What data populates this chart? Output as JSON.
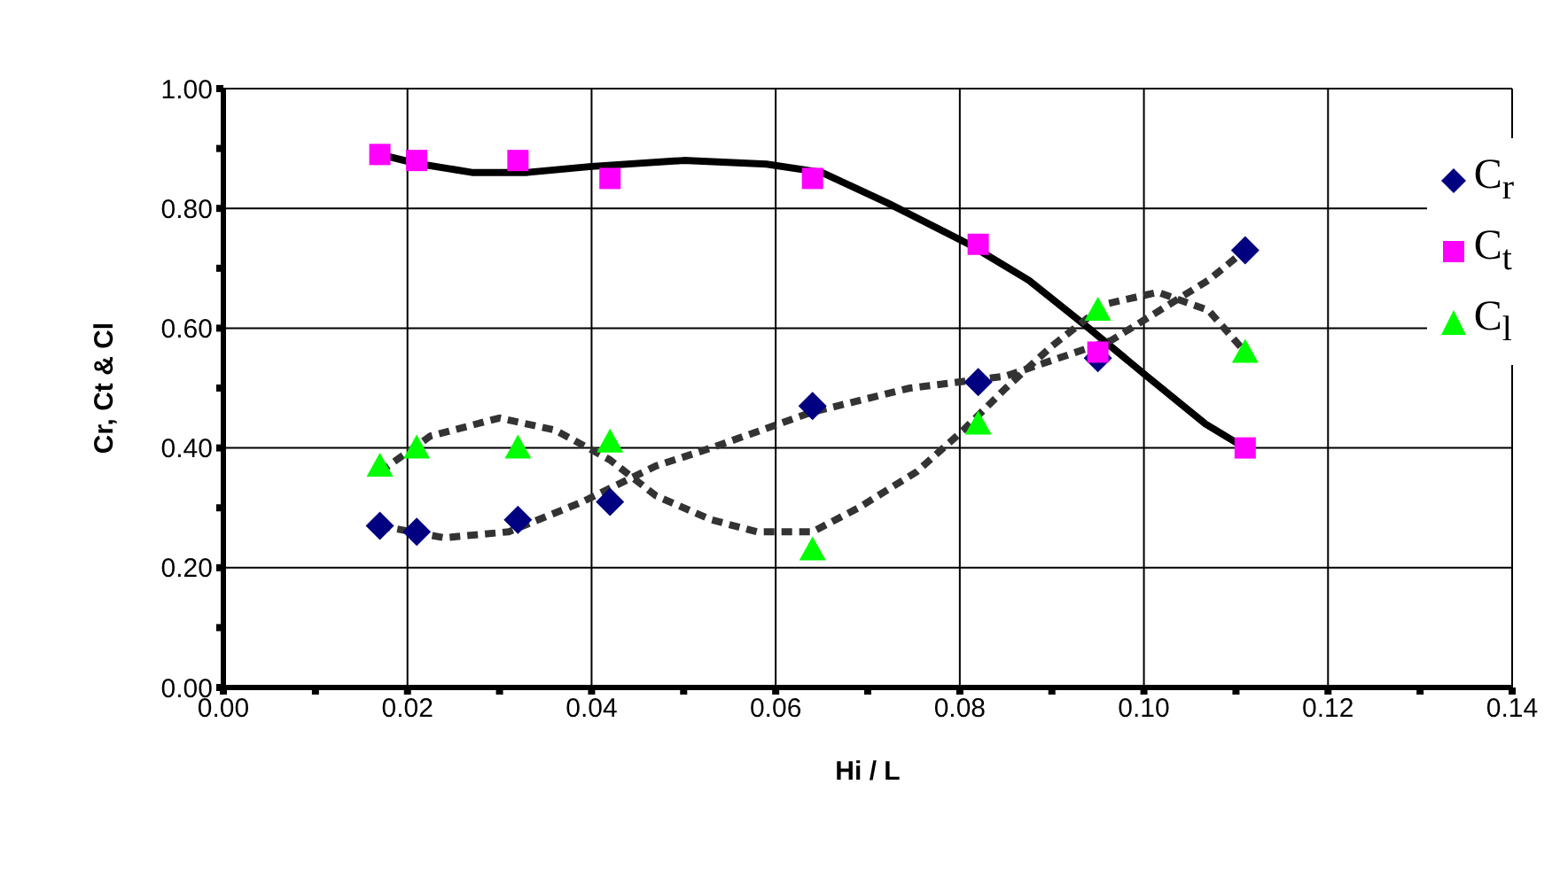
{
  "chart_data": {
    "type": "scatter",
    "xlabel": "Hi / L",
    "ylabel": "Cr, Ct & Cl",
    "xlim": [
      0,
      0.14
    ],
    "ylim": [
      0,
      1
    ],
    "xticks": [
      {
        "value": 0,
        "label": "0.00"
      },
      {
        "value": 0.01,
        "label": null
      },
      {
        "value": 0.02,
        "label": "0.02"
      },
      {
        "value": 0.03,
        "label": null
      },
      {
        "value": 0.04,
        "label": "0.04"
      },
      {
        "value": 0.05,
        "label": null
      },
      {
        "value": 0.06,
        "label": "0.06"
      },
      {
        "value": 0.07,
        "label": null
      },
      {
        "value": 0.08,
        "label": "0.08"
      },
      {
        "value": 0.09,
        "label": null
      },
      {
        "value": 0.1,
        "label": "0.10"
      },
      {
        "value": 0.11,
        "label": null
      },
      {
        "value": 0.12,
        "label": "0.12"
      },
      {
        "value": 0.13,
        "label": null
      },
      {
        "value": 0.14,
        "label": "0.14"
      }
    ],
    "yticks": [
      {
        "value": 0,
        "label": "0.00"
      },
      {
        "value": 0.1,
        "label": null
      },
      {
        "value": 0.2,
        "label": "0.20"
      },
      {
        "value": 0.3,
        "label": null
      },
      {
        "value": 0.4,
        "label": "0.40"
      },
      {
        "value": 0.5,
        "label": null
      },
      {
        "value": 0.6,
        "label": "0.60"
      },
      {
        "value": 0.7,
        "label": null
      },
      {
        "value": 0.8,
        "label": "0.80"
      },
      {
        "value": 0.9,
        "label": null
      },
      {
        "value": 1,
        "label": "1.00"
      }
    ],
    "grid": true,
    "legend": "top right",
    "series": [
      {
        "name": "C$_{r}$",
        "color": "#000080",
        "marker": "diamond",
        "x": [
          0.017,
          0.021,
          0.032,
          0.042,
          0.064,
          0.082,
          0.095,
          0.111
        ],
        "values": [
          0.27,
          0.26,
          0.28,
          0.31,
          0.47,
          0.51,
          0.55,
          0.73
        ]
      },
      {
        "name": "C$_{t}$",
        "color": "#ff00ff",
        "marker": "square",
        "x": [
          0.017,
          0.021,
          0.032,
          0.042,
          0.064,
          0.082,
          0.095,
          0.111
        ],
        "values": [
          0.89,
          0.88,
          0.88,
          0.85,
          0.85,
          0.74,
          0.56,
          0.4
        ]
      },
      {
        "name": "C$_{l}$",
        "color": "#00ff00",
        "marker": "triangle",
        "x": [
          0.017,
          0.021,
          0.032,
          0.042,
          0.064,
          0.082,
          0.095,
          0.111
        ],
        "values": [
          0.37,
          0.4,
          0.4,
          0.41,
          0.23,
          0.44,
          0.63,
          0.56
        ]
      },
      {
        "type": "line",
        "color": "#000000",
        "marker": "none",
        "line_style": "solid",
        "x": [
          0.017,
          0.021,
          0.027,
          0.033,
          0.04,
          0.05,
          0.059,
          0.065,
          0.072,
          0.0746,
          0.081,
          0.0875,
          0.094,
          0.1003,
          0.1067,
          0.111
        ],
        "values": [
          0.89,
          0.875,
          0.86,
          0.86,
          0.87,
          0.88,
          0.874,
          0.86,
          0.81,
          0.79,
          0.74,
          0.68,
          0.6,
          0.52,
          0.44,
          0.4
        ]
      },
      {
        "type": "line",
        "color": "#333333",
        "marker": "none",
        "line_style": "dashed",
        "x": [
          0.017,
          0.024,
          0.031,
          0.039,
          0.047,
          0.053,
          0.064,
          0.0746,
          0.085,
          0.0965,
          0.107,
          0.111
        ],
        "values": [
          0.27,
          0.25,
          0.26,
          0.31,
          0.37,
          0.4,
          0.46,
          0.5,
          0.52,
          0.58,
          0.68,
          0.73
        ]
      },
      {
        "type": "line",
        "color": "#333333",
        "marker": "none",
        "line_style": "dashed",
        "x": [
          0.017,
          0.0225,
          0.03,
          0.036,
          0.042,
          0.047,
          0.053,
          0.058,
          0.064,
          0.069,
          0.0753,
          0.0804,
          0.085,
          0.09,
          0.0958,
          0.1015,
          0.107,
          0.111
        ],
        "values": [
          0.36,
          0.42,
          0.45,
          0.43,
          0.38,
          0.32,
          0.28,
          0.26,
          0.26,
          0.3,
          0.36,
          0.43,
          0.5,
          0.57,
          0.64,
          0.66,
          0.63,
          0.56
        ]
      }
    ]
  }
}
